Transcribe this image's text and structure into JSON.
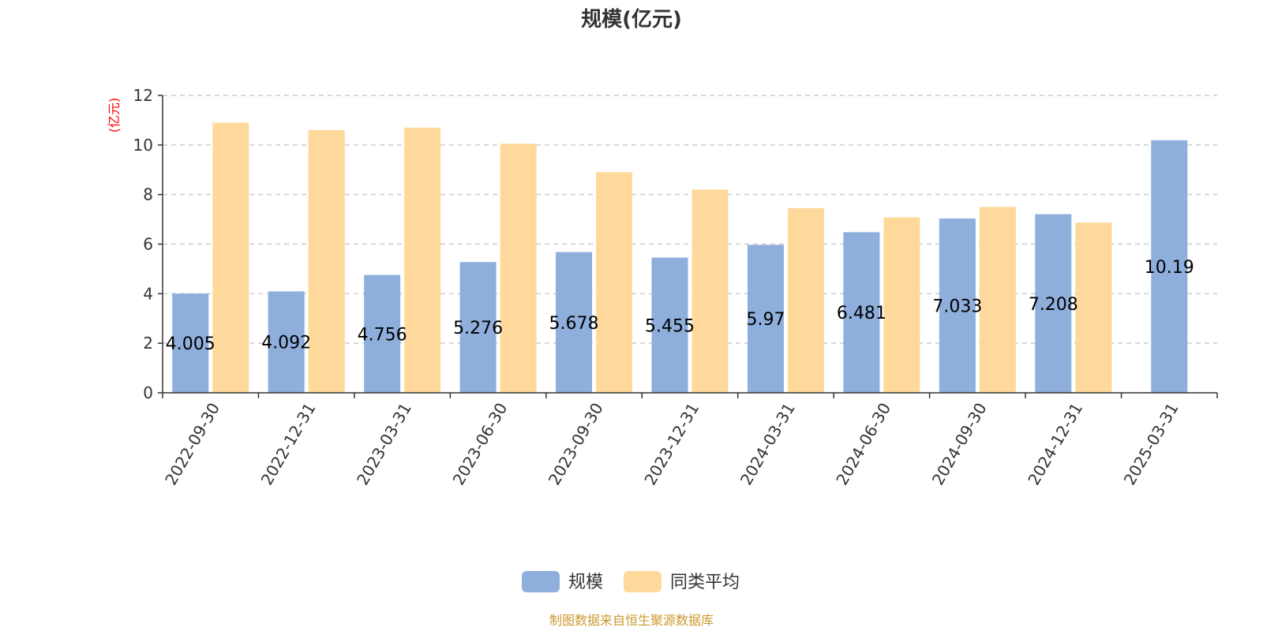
{
  "chart_data": {
    "type": "bar",
    "title": "规模(亿元)",
    "ylabel": "(亿元)",
    "ylim": [
      0,
      12
    ],
    "yticks": [
      0,
      2,
      4,
      6,
      8,
      10,
      12
    ],
    "grid": true,
    "legend_position": "bottom",
    "categories": [
      "2022-09-30",
      "2022-12-31",
      "2023-03-31",
      "2023-06-30",
      "2023-09-30",
      "2023-12-31",
      "2024-03-31",
      "2024-06-30",
      "2024-09-30",
      "2024-12-31",
      "2025-03-31"
    ],
    "series": [
      {
        "name": "规模",
        "color": "#8eaedb",
        "values": [
          4.005,
          4.092,
          4.756,
          5.276,
          5.678,
          5.455,
          5.97,
          6.481,
          7.033,
          7.208,
          10.19
        ],
        "labels": [
          "4.005",
          "4.092",
          "4.756",
          "5.276",
          "5.678",
          "5.455",
          "5.97",
          "6.481",
          "7.033",
          "7.208",
          "10.19"
        ]
      },
      {
        "name": "同类平均",
        "color": "#fed99b",
        "values": [
          10.9,
          10.6,
          10.7,
          10.05,
          8.9,
          8.2,
          7.45,
          7.08,
          7.5,
          6.87,
          null
        ]
      }
    ],
    "source": "制图数据来自恒生聚源数据库",
    "colors": {
      "ylabel": "#ff0000",
      "source": "#cc9a2e",
      "grid": "#cccccc",
      "axis": "#333333"
    }
  }
}
